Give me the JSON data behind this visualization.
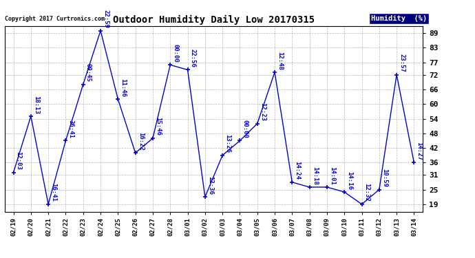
{
  "title": "Outdoor Humidity Daily Low 20170315",
  "copyright": "Copyright 2017 Curtronics.com",
  "legend_label": "Humidity  (%)",
  "x_labels": [
    "02/19",
    "02/20",
    "02/21",
    "02/22",
    "02/23",
    "02/24",
    "02/25",
    "02/26",
    "02/27",
    "02/28",
    "03/01",
    "03/02",
    "03/03",
    "03/04",
    "03/05",
    "03/06",
    "03/07",
    "03/08",
    "03/09",
    "03/10",
    "03/11",
    "03/12",
    "03/13",
    "03/14"
  ],
  "y_values": [
    32,
    55,
    19,
    45,
    68,
    90,
    62,
    40,
    46,
    76,
    74,
    22,
    39,
    45,
    52,
    73,
    28,
    26,
    26,
    24,
    19,
    25,
    72,
    36
  ],
  "annotations": [
    "12:03",
    "18:13",
    "16:41",
    "36:41",
    "09:45",
    "22:59",
    "11:46",
    "16:22",
    "15:46",
    "00:00",
    "22:56",
    "12:36",
    "13:26",
    "00:00",
    "12:23",
    "12:48",
    "14:24",
    "14:18",
    "14:01",
    "14:16",
    "12:32",
    "10:59",
    "23:57",
    "14:27"
  ],
  "line_color": "#0000cc",
  "marker_color": "#0000cc",
  "bg_color": "#ffffff",
  "grid_color": "#888888",
  "title_color": "#000000",
  "legend_bg": "#000080",
  "legend_fg": "#ffffff",
  "copyright_color": "#000000",
  "ylim_min": 16,
  "ylim_max": 92,
  "yticks": [
    19,
    25,
    31,
    36,
    42,
    48,
    54,
    60,
    66,
    72,
    77,
    83,
    89
  ]
}
